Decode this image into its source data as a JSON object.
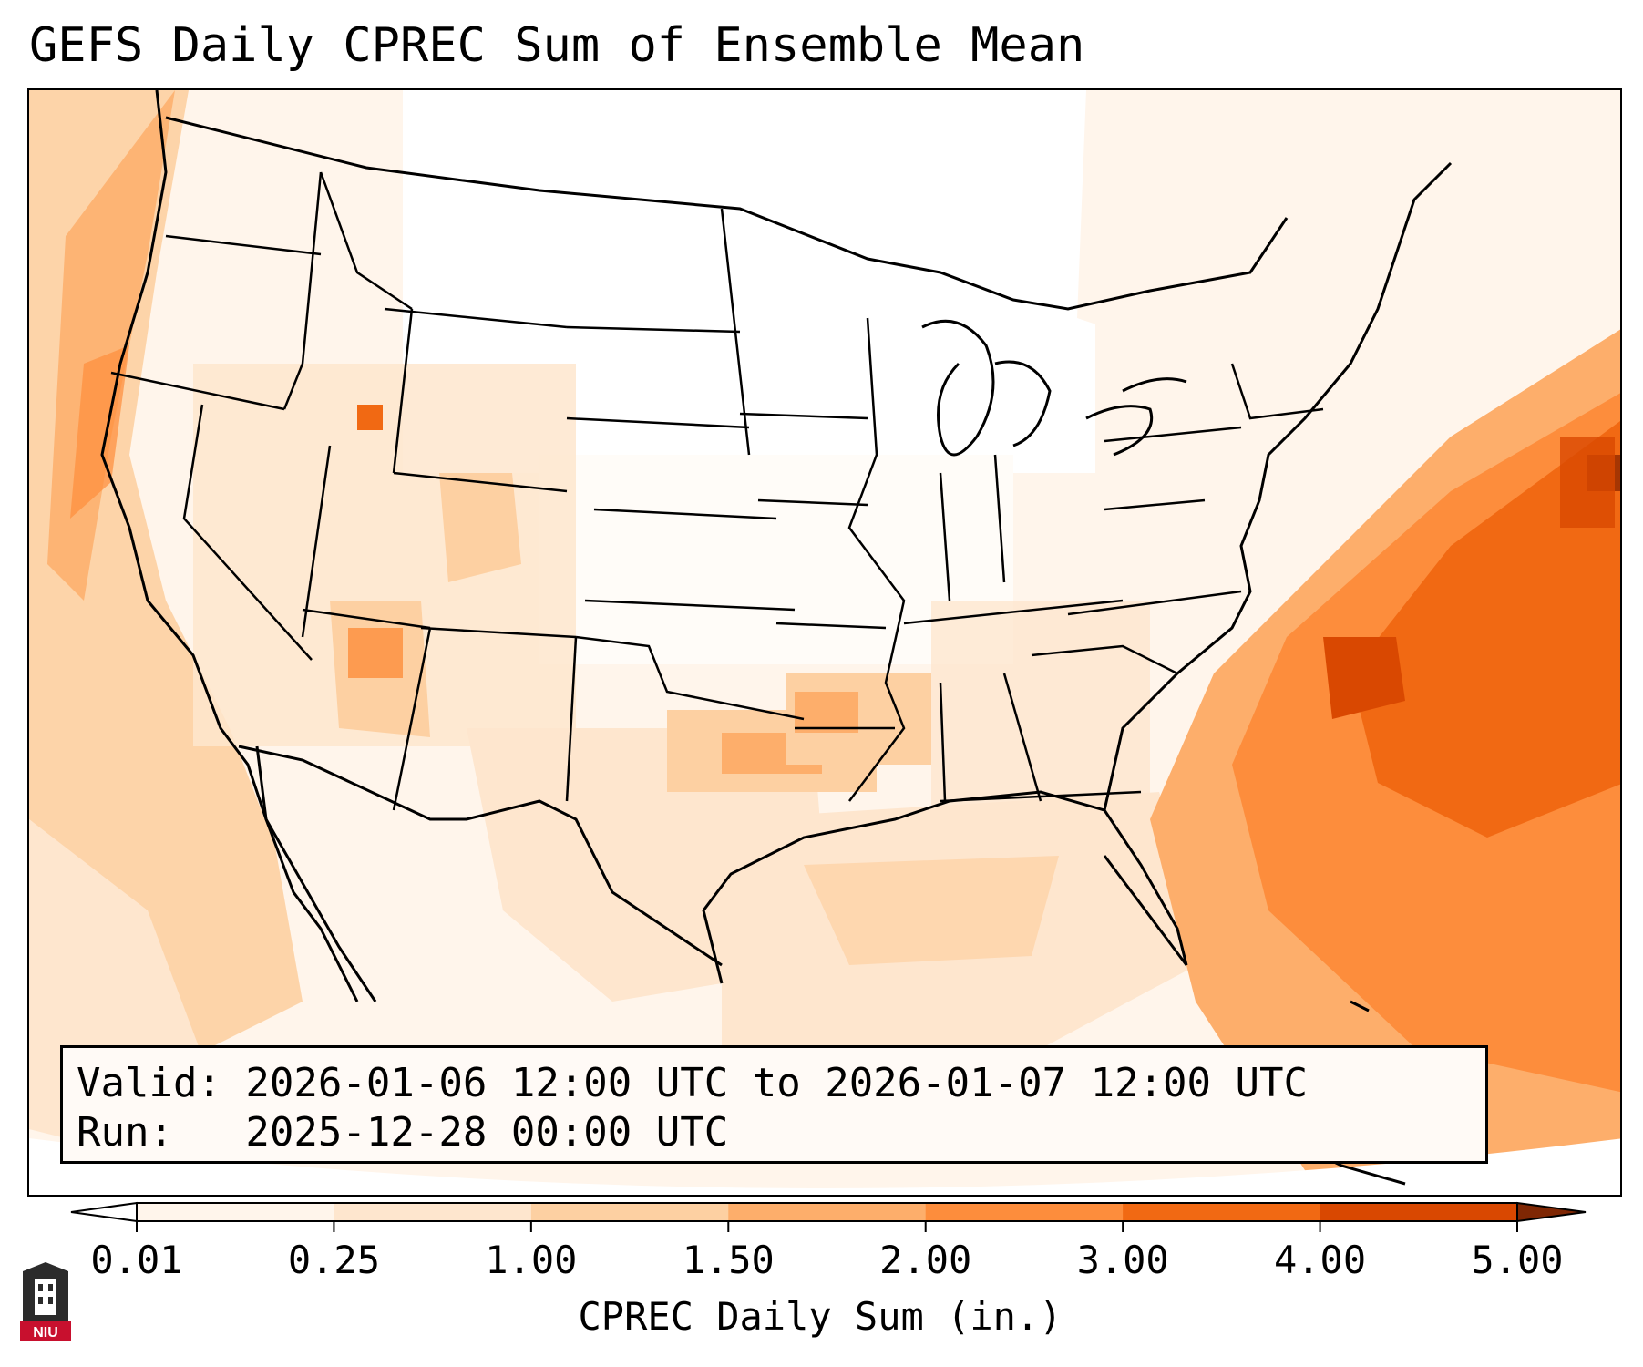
{
  "title": "GEFS Daily CPREC Sum of Ensemble Mean",
  "info": {
    "valid_line": "Valid: 2026-01-06 12:00 UTC to 2026-01-07 12:00 UTC",
    "run_line": "Run:   2025-12-28 00:00 UTC"
  },
  "colorbar": {
    "label": "CPREC Daily Sum (in.)",
    "ticks": [
      "0.01",
      "0.25",
      "1.00",
      "1.50",
      "2.00",
      "3.00",
      "4.00",
      "5.00"
    ],
    "colors": [
      "#fff5eb",
      "#fee6ce",
      "#fdd0a2",
      "#fdae6b",
      "#fd8d3c",
      "#f16913",
      "#d94801",
      "#a63603"
    ],
    "under_color": "#ffffff",
    "over_color": "#7f2704"
  },
  "logo": {
    "text": "NIU",
    "icon": "university-tower-icon",
    "color": "#c8102e"
  }
}
